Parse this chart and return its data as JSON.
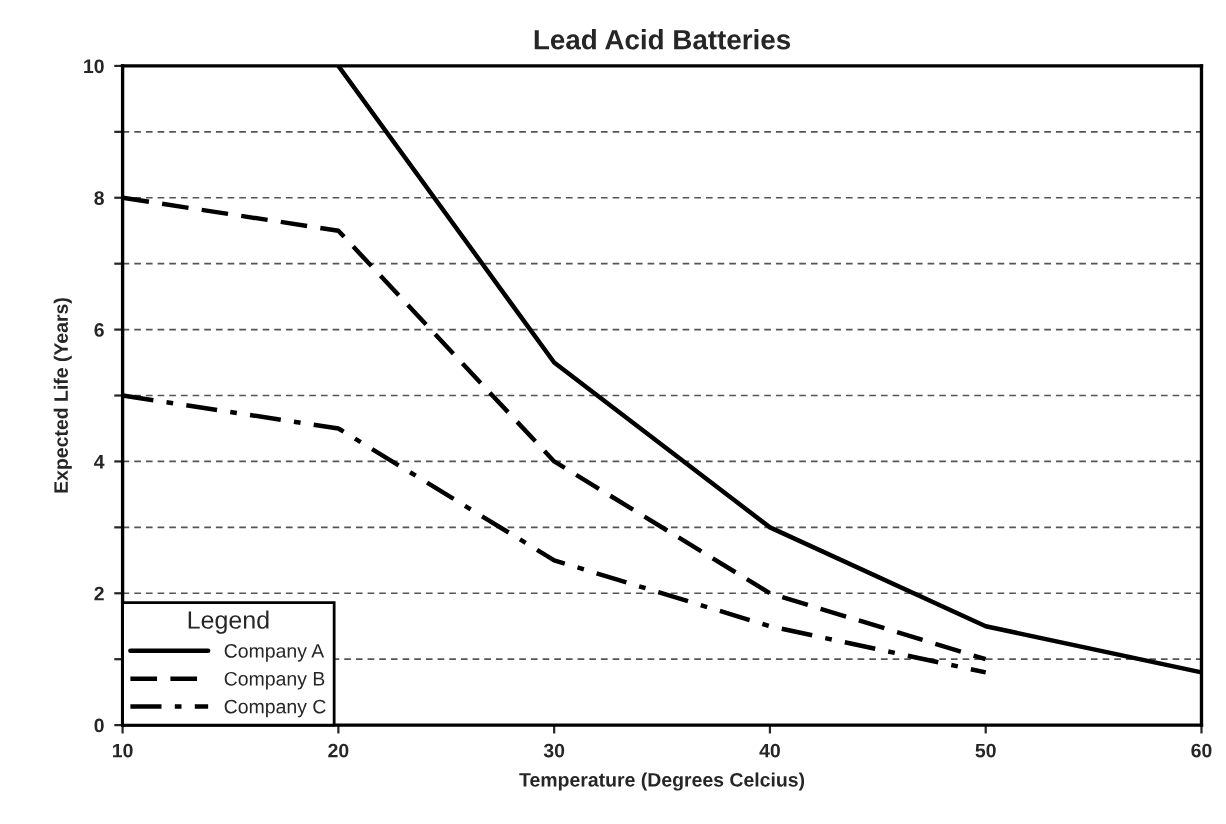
{
  "chart_data": {
    "type": "line",
    "title": "Lead Acid Batteries",
    "xlabel": "Temperature (Degrees Celcius)",
    "ylabel": "Expected Life (Years)",
    "legend_title": "Legend",
    "legend": "bottom left",
    "grid": "y",
    "xlim": [
      10,
      60
    ],
    "xticks": [
      10,
      20,
      30,
      40,
      50,
      60
    ],
    "ylim": [
      0,
      10
    ],
    "yticks": [
      0,
      {
        "value": 1,
        "label": null
      },
      2,
      {
        "value": 3,
        "label": null
      },
      4,
      {
        "value": 5,
        "label": null
      },
      6,
      {
        "value": 7,
        "label": null
      },
      8,
      {
        "value": 9,
        "label": null
      },
      10
    ],
    "series": [
      {
        "name": "Company A",
        "color": "#000000",
        "line_style": "solid",
        "x": [
          20,
          30,
          40,
          50,
          60
        ],
        "values": [
          10,
          5.5,
          3,
          1.5,
          0.8
        ]
      },
      {
        "name": "Company B",
        "color": "#000000",
        "line_style": "dashed",
        "x": [
          10,
          20,
          30,
          40,
          50
        ],
        "values": [
          8,
          7.5,
          4,
          2,
          1
        ]
      },
      {
        "name": "Company C",
        "color": "#000000",
        "line_style": "dashdot",
        "x": [
          10,
          20,
          30,
          40,
          50
        ],
        "values": [
          5,
          4.5,
          2.5,
          1.5,
          0.8
        ]
      }
    ]
  }
}
